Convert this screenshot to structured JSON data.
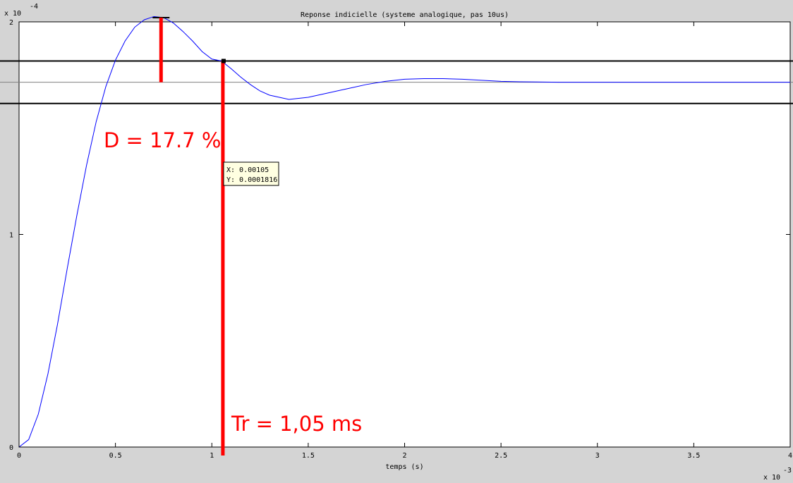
{
  "chart_data": {
    "type": "line",
    "title": "Reponse indicielle (systeme analogique, pas 10us)",
    "xlabel": "temps (s)",
    "ylabel": "",
    "x_multiplier": "x 10",
    "x_exponent": "-3",
    "y_multiplier": "x 10",
    "y_exponent": "-4",
    "xlim": [
      0,
      0.004
    ],
    "ylim": [
      0,
      0.0002
    ],
    "x_ticks": [
      0,
      0.0005,
      0.001,
      0.0015,
      0.002,
      0.0025,
      0.003,
      0.0035,
      0.004
    ],
    "x_tick_labels": [
      "0",
      "0.5",
      "1",
      "1.5",
      "2",
      "2.5",
      "3",
      "3.5",
      "4"
    ],
    "y_ticks": [
      0,
      0.0001,
      0.0002
    ],
    "y_tick_labels": [
      "0",
      "1",
      "2"
    ],
    "grid": false,
    "series": [
      {
        "color": "#0000ff",
        "x": [
          0,
          5e-05,
          0.0001,
          0.00015,
          0.0002,
          0.00025,
          0.0003,
          0.00035,
          0.0004,
          0.00045,
          0.0005,
          0.00055,
          0.0006,
          0.00065,
          0.0007,
          0.00075,
          0.0008,
          0.00085,
          0.0009,
          0.00095,
          0.001,
          0.00105,
          0.0011,
          0.00115,
          0.0012,
          0.00125,
          0.0013,
          0.00135,
          0.0014,
          0.0015,
          0.0016,
          0.0017,
          0.0018,
          0.0019,
          0.002,
          0.0021,
          0.0022,
          0.0023,
          0.0024,
          0.0025,
          0.0026,
          0.0028,
          0.003,
          0.0032,
          0.0034,
          0.0036,
          0.0038,
          0.004
        ],
        "y": [
          0,
          3.5e-06,
          1.55e-05,
          3.45e-05,
          5.8e-05,
          8.4e-05,
          0.000109,
          0.0001325,
          0.000153,
          0.0001695,
          0.000182,
          0.000191,
          0.0001975,
          0.000201,
          0.0002025,
          0.000202,
          0.0001995,
          0.0001955,
          0.000191,
          0.000186,
          0.0001825,
          0.0001816,
          0.000178,
          0.000174,
          0.0001705,
          0.0001675,
          0.0001655,
          0.0001645,
          0.0001635,
          0.0001645,
          0.0001665,
          0.0001685,
          0.0001705,
          0.000172,
          0.000173,
          0.0001733,
          0.0001733,
          0.000173,
          0.0001725,
          0.000172,
          0.0001718,
          0.0001716,
          0.0001716,
          0.0001716,
          0.0001716,
          0.0001716,
          0.0001716,
          0.0001716
        ]
      }
    ],
    "reference_lines": {
      "final_value": 0.0001716,
      "band_upper": 0.0001816,
      "band_lower": 0.0001616
    },
    "annotations": {
      "overshoot": {
        "label": "D = 17.7 %",
        "x": 0.0007,
        "y_top": 0.000202,
        "y_bottom": 0.0001716,
        "color": "#ff0000"
      },
      "settling": {
        "label": "Tr = 1,05 ms",
        "x": 0.00105,
        "y_top": 0.0001816,
        "y_bottom": 0,
        "color": "#ff0000"
      }
    },
    "datatip": {
      "x_text": "X: 0.00105",
      "y_text": "Y: 0.0001816",
      "x": 0.00105,
      "y": 0.0001816,
      "background": "#ffffe1"
    }
  }
}
